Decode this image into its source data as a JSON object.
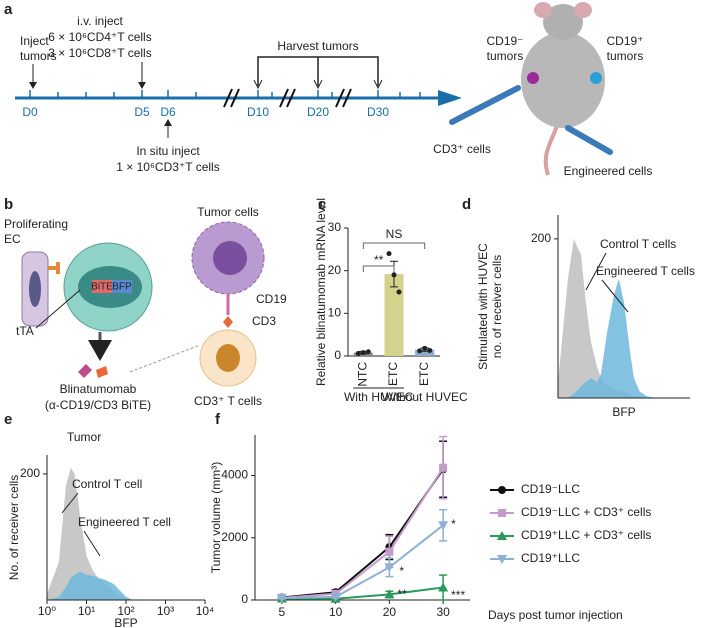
{
  "panel_labels": [
    "a",
    "b",
    "c",
    "d",
    "e",
    "f"
  ],
  "diagram_a": {
    "inject_tumors": [
      "Inject",
      "tumors"
    ],
    "iv_inject": [
      "i.v. inject",
      "6 × 10⁶CD4⁺T cells",
      "3 × 10⁶CD8⁺T cells"
    ],
    "harvest": "Harvest tumors",
    "in_situ": [
      "In situ inject",
      "1 × 10⁶CD3⁺T cells"
    ],
    "days": [
      "D0",
      "D5",
      "D6",
      "D10",
      "D20",
      "D30"
    ],
    "cd19_neg": [
      "CD19⁻",
      "tumors"
    ],
    "cd19_pos": [
      "CD19⁺",
      "tumors"
    ],
    "cd3_cells": "CD3⁺ cells",
    "engineered": "Engineered cells"
  },
  "diagram_b": {
    "ec": [
      "Proliferating",
      "EC"
    ],
    "tumor_cells": "Tumor cells",
    "bite": "BiTE",
    "bfp": "BFP",
    "tta": "tTA",
    "cd19": "CD19",
    "cd3": "CD3",
    "blina": [
      "Blinatumomab",
      "(α-CD19/CD3 BiTE)"
    ],
    "tcell": "CD3⁺ T cells"
  },
  "chart_data": [
    {
      "type": "bar",
      "ylabel": "Relative blinatumomab mRNA level",
      "categories": [
        "NTC",
        "ETC",
        "ETC"
      ],
      "values": [
        0.8,
        19.2,
        1.5
      ],
      "errors": [
        0.3,
        3,
        0.4
      ],
      "points": [
        [
          0.6,
          0.8,
          1.0
        ],
        [
          24,
          19,
          15
        ],
        [
          1.2,
          1.8,
          1.3
        ]
      ],
      "colors": [
        "#8a8a8a",
        "#d4d28c",
        "#8fa8cc"
      ],
      "group_labels": [
        "With HUVEC",
        "Without HUVEC"
      ],
      "annotations": [
        "**",
        "NS"
      ],
      "ylim": [
        0,
        30
      ],
      "yticks": [
        0,
        10,
        20,
        30
      ]
    },
    {
      "type": "area",
      "ylabel": [
        "Stimulated with HUVEC",
        "no. of receiver cells"
      ],
      "xlabel": "BFP",
      "log_x": true,
      "x": [
        1,
        2,
        3,
        5,
        7,
        10,
        15,
        20,
        30,
        50,
        70,
        100,
        150,
        200,
        300,
        500,
        1000
      ],
      "xlim": [
        1,
        10000
      ],
      "series": [
        {
          "name": "Control T cells",
          "color": "#c8c8c8",
          "values": [
            20,
            150,
            200,
            180,
            120,
            70,
            40,
            25,
            15,
            12,
            10,
            8,
            5,
            3,
            2,
            0,
            0
          ]
        },
        {
          "name": "Engineered T cells",
          "color": "#6db8dc",
          "values": [
            0,
            0,
            5,
            15,
            20,
            25,
            20,
            30,
            80,
            130,
            150,
            120,
            60,
            25,
            8,
            2,
            0
          ]
        }
      ],
      "ylim": [
        0,
        230
      ],
      "yticks": [
        200
      ]
    },
    {
      "type": "area",
      "title": "Tumor",
      "ylabel": [
        "No. of receiver cells"
      ],
      "xlabel": "BFP",
      "log_x": true,
      "x": [
        1,
        2,
        3,
        4,
        5,
        7,
        10,
        15,
        20,
        30,
        50,
        70,
        100,
        150,
        200
      ],
      "xlim": [
        1,
        10000
      ],
      "xticks": [
        {
          "value": 1,
          "label": "10⁰"
        },
        {
          "value": 10,
          "label": "10¹"
        },
        {
          "value": 100,
          "label": "10²"
        },
        {
          "value": 1000,
          "label": "10³"
        },
        {
          "value": 10000,
          "label": "10⁴"
        }
      ],
      "series": [
        {
          "name": "Control T cell",
          "color": "#c8c8c8",
          "values": [
            10,
            60,
            180,
            210,
            200,
            130,
            70,
            45,
            35,
            25,
            15,
            8,
            3,
            0,
            0
          ]
        },
        {
          "name": "Engineered T cell",
          "color": "#6db8dc",
          "values": [
            0,
            5,
            20,
            35,
            40,
            45,
            40,
            38,
            35,
            32,
            25,
            15,
            5,
            0,
            0
          ]
        }
      ],
      "ylim": [
        0,
        230
      ],
      "yticks": [
        200
      ]
    },
    {
      "type": "line",
      "ylabel": "Tumor volume (mm³)",
      "xlabel": "Days post tumor injection",
      "categories": [
        "5",
        "10",
        "20",
        "30"
      ],
      "series": [
        {
          "name": "CD19⁻LLC",
          "color": "#111111",
          "marker": "circle",
          "values": [
            80,
            250,
            1700,
            4200
          ],
          "errors": [
            30,
            80,
            400,
            900
          ]
        },
        {
          "name": "CD19⁻LLC + CD3⁺ cells",
          "color": "#c49cc8",
          "marker": "square",
          "values": [
            70,
            200,
            1550,
            4250
          ],
          "errors": [
            30,
            60,
            500,
            1000
          ]
        },
        {
          "name": "CD19⁺LLC + CD3⁺ cells",
          "color": "#2a9a5a",
          "marker": "triangle-up",
          "values": [
            50,
            40,
            180,
            400
          ],
          "errors": [
            20,
            20,
            100,
            400
          ]
        },
        {
          "name": "CD19⁺LLC",
          "color": "#8fafd4",
          "marker": "triangle-down",
          "values": [
            60,
            100,
            1050,
            2400
          ],
          "errors": [
            20,
            40,
            300,
            500
          ]
        }
      ],
      "annotations": [
        "*",
        "*",
        "**",
        "***"
      ],
      "ylim": [
        0,
        5300
      ],
      "yticks": [
        0,
        2000,
        4000
      ]
    }
  ]
}
